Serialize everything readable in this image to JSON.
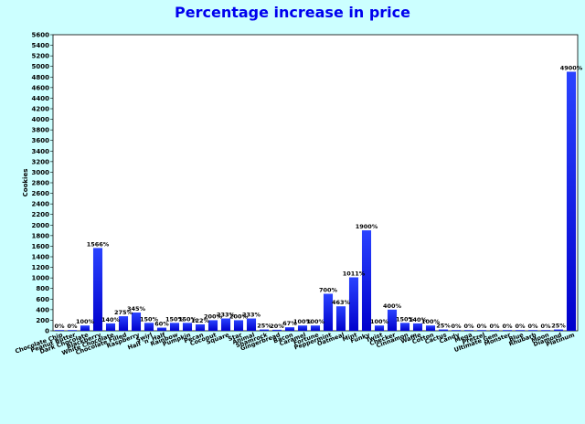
{
  "chart_data": {
    "type": "bar",
    "title": "Percentage increase in price",
    "xlabel": "",
    "ylabel": "Cookies",
    "ylim": [
      0,
      5600
    ],
    "ytick_step": 200,
    "grid": false,
    "bar_color_top": "#2a43ff",
    "bar_color_bottom": "#0000cc",
    "background_color": "#ccffff",
    "title_color": "#0000ee",
    "categories": [
      "Chocolate Chip",
      "Peanut Butter",
      "Dark Chocolate",
      "Blackberry",
      "White Chocolate",
      "Chocolate Filled",
      "Raspberry",
      "Swirl",
      "Half 'n' Half",
      "Rainbow",
      "Pumpkin",
      "Pecan",
      "Coconut",
      "Square",
      "Star",
      "Animal",
      "Shamrock",
      "Gingerbread",
      "Bacon",
      "Caramel",
      "Fortune",
      "Peppermint",
      "Oatmeal",
      "Mint",
      "Funky",
      "Twist",
      "Checker",
      "Cinnamon",
      "Waffle",
      "Cotton",
      "Cactus",
      "Candy",
      "Mega",
      "Pretzel",
      "Ultimate Gem",
      "Monster",
      "Blue",
      "Rhubarb",
      "Moon",
      "Diamond",
      "Platinum"
    ],
    "values": [
      0,
      0,
      100,
      1566,
      140,
      275,
      345,
      150,
      60,
      150,
      150,
      122,
      200,
      233,
      200,
      233,
      25,
      20,
      67,
      100,
      100,
      700,
      463,
      1011,
      1900,
      100,
      400,
      150,
      140,
      100,
      25,
      0,
      0,
      0,
      0,
      0,
      0,
      0,
      0,
      25,
      4900
    ],
    "data_labels": [
      "0%",
      "0%",
      "100%",
      "1566%",
      "140%",
      "275%",
      "345%",
      "150%",
      "60%",
      "150%",
      "150%",
      "122%",
      "200%",
      "233%",
      "200%",
      "233%",
      "25%",
      "20%",
      "67%",
      "100%",
      "100%",
      "700%",
      "463%",
      "1011%",
      "1900%",
      "100%",
      "400%",
      "150%",
      "140%",
      "100%",
      "25%",
      "0%",
      "0%",
      "0%",
      "0%",
      "0%",
      "0%",
      "0%",
      "0%",
      "25%",
      "4900%"
    ]
  }
}
